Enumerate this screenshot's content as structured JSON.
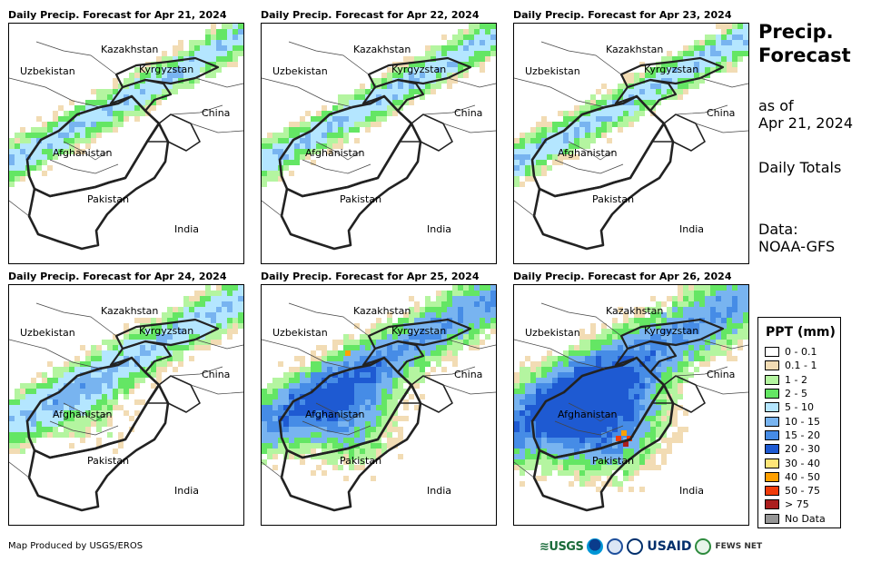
{
  "panels": [
    {
      "title": "Daily Precip. Forecast for Apr 21, 2024",
      "intensity": 1
    },
    {
      "title": "Daily Precip. Forecast for Apr 22, 2024",
      "intensity": 1
    },
    {
      "title": "Daily Precip. Forecast for Apr 23, 2024",
      "intensity": 1
    },
    {
      "title": "Daily Precip. Forecast for Apr 24, 2024",
      "intensity": 2
    },
    {
      "title": "Daily Precip. Forecast for Apr 25, 2024",
      "intensity": 3
    },
    {
      "title": "Daily Precip. Forecast for Apr 26, 2024",
      "intensity": 4
    }
  ],
  "map_labels": {
    "kazakhstan": "Kazakhstan",
    "uzbekistan": "Uzbekistan",
    "kyrgyzstan": "Kyrgyzstan",
    "china": "China",
    "afghanistan": "Afghanistan",
    "pakistan": "Pakistan",
    "india": "India"
  },
  "side": {
    "title_line1": "Precip.",
    "title_line2": "Forecast",
    "asof_line1": "as of",
    "asof_line2": "Apr 21, 2024",
    "totals": "Daily Totals",
    "data_line1": "Data:",
    "data_line2": "NOAA-GFS"
  },
  "legend": {
    "title": "PPT (mm)",
    "items": [
      {
        "label": "0 - 0.1",
        "color": "#ffffff"
      },
      {
        "label": "0.1 - 1",
        "color": "#f2dcb4"
      },
      {
        "label": "1 - 2",
        "color": "#b4f5a0"
      },
      {
        "label": "2 - 5",
        "color": "#64e664"
      },
      {
        "label": "5 - 10",
        "color": "#b4e6ff"
      },
      {
        "label": "10 - 15",
        "color": "#78b4f0"
      },
      {
        "label": "15 - 20",
        "color": "#468ce6"
      },
      {
        "label": "20 - 30",
        "color": "#1e5ad2"
      },
      {
        "label": "30 - 40",
        "color": "#ffe678"
      },
      {
        "label": "40 - 50",
        "color": "#ffa000"
      },
      {
        "label": "50 - 75",
        "color": "#f03c0a"
      },
      {
        "label": "> 75",
        "color": "#aa1e1e"
      },
      {
        "label": "No Data",
        "color": "#969696"
      }
    ]
  },
  "footer": {
    "credit": "Map Produced by USGS/EROS"
  },
  "logos": {
    "usgs": "≋USGS",
    "usaid": "USAID",
    "fews": "FEWS NET"
  }
}
